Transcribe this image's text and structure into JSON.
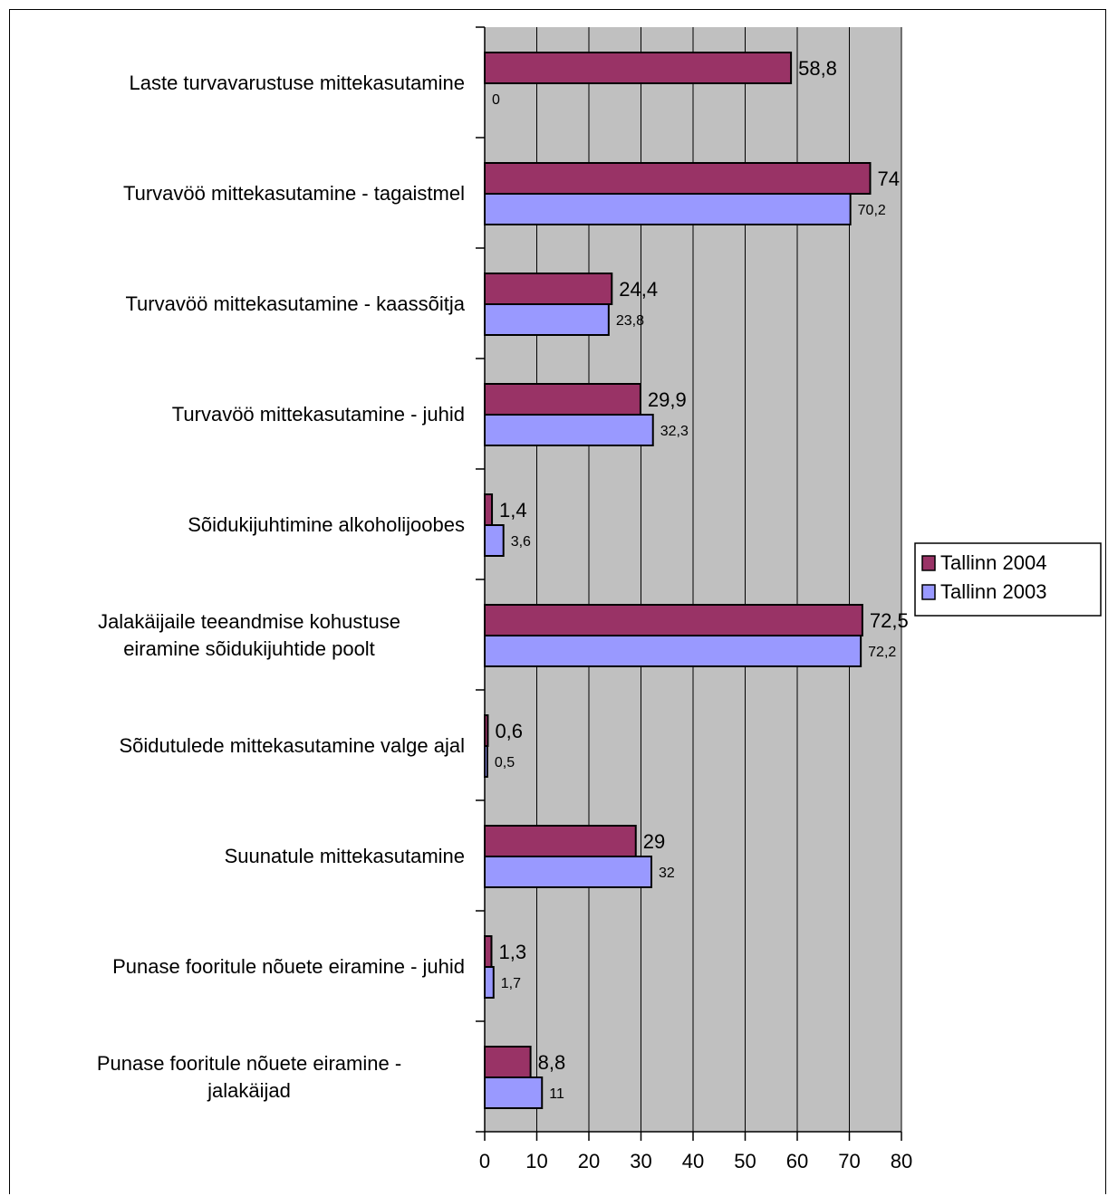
{
  "chart_data": {
    "type": "bar",
    "orientation": "horizontal",
    "categories": [
      [
        "Laste turvavarustuse mittekasutamine"
      ],
      [
        "Turvavöö mittekasutamine - tagaistmel"
      ],
      [
        "Turvavöö mittekasutamine - kaassõitja"
      ],
      [
        "Turvavöö mittekasutamine - juhid"
      ],
      [
        "Sõidukijuhtimine alkoholijoobes"
      ],
      [
        "Jalakäijaile teeandmise kohustuse",
        "eiramine sõidukijuhtide poolt"
      ],
      [
        "Sõidutulede mittekasutamine valge ajal"
      ],
      [
        "Suunatule mittekasutamine"
      ],
      [
        "Punase fooritule nõuete eiramine - juhid"
      ],
      [
        "Punase fooritule nõuete eiramine -",
        "jalakäijad"
      ]
    ],
    "series": [
      {
        "name": "Tallinn 2004",
        "color": "#993366",
        "values": [
          58.8,
          74,
          24.4,
          29.9,
          1.4,
          72.5,
          0.6,
          29,
          1.3,
          8.8
        ],
        "labels": [
          "58,8",
          "74",
          "24,4",
          "29,9",
          "1,4",
          "72,5",
          "0,6",
          "29",
          "1,3",
          "8,8"
        ]
      },
      {
        "name": "Tallinn 2003",
        "color": "#9999ff",
        "values": [
          0,
          70.2,
          23.8,
          32.3,
          3.6,
          72.2,
          0.5,
          32,
          1.7,
          11
        ],
        "labels": [
          "0",
          "70,2",
          "23,8",
          "32,3",
          "3,6",
          "72,2",
          "0,5",
          "32",
          "1,7",
          "11"
        ]
      }
    ],
    "xlim": [
      0,
      80
    ],
    "xticks": [
      "0",
      "10",
      "20",
      "30",
      "40",
      "50",
      "60",
      "70",
      "80"
    ],
    "grid": true,
    "plot_background": "#c0c0c0",
    "legend_position": "right"
  }
}
